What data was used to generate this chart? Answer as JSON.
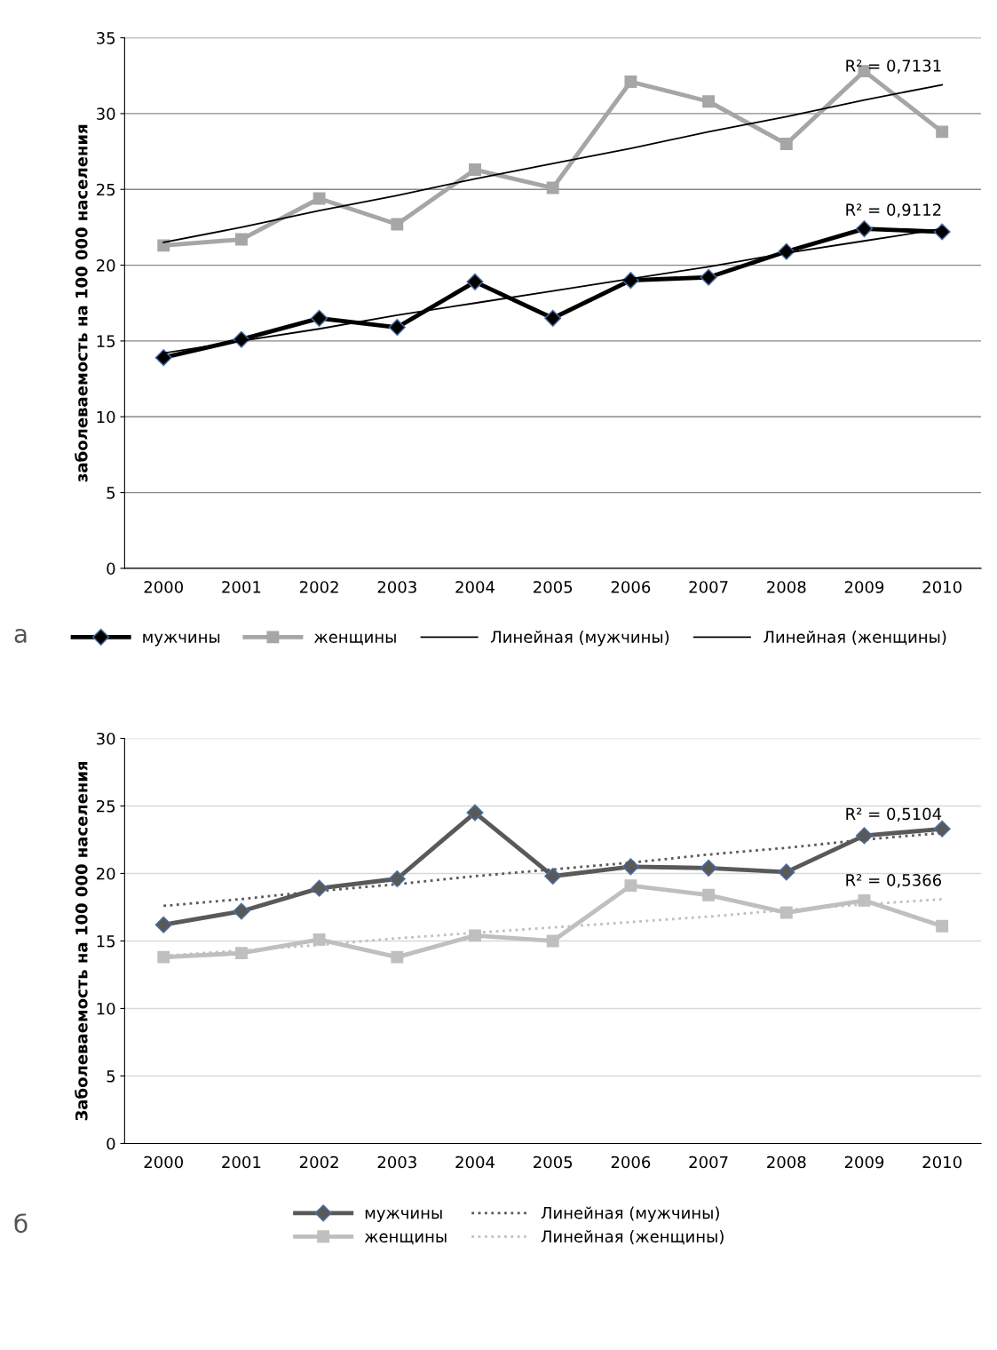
{
  "chart_data": [
    {
      "type": "line",
      "ylabel": "заболеваемость на 100 000 населения",
      "categories": [
        "2000",
        "2001",
        "2002",
        "2003",
        "2004",
        "2005",
        "2006",
        "2007",
        "2008",
        "2009",
        "2010"
      ],
      "ylim": [
        0,
        35
      ],
      "yticks": [
        0,
        5,
        10,
        15,
        20,
        25,
        30,
        35
      ],
      "grid": "y",
      "legend": "bottom",
      "series": [
        {
          "name": "мужчины",
          "color": "#000000",
          "marker": "diamond",
          "line_style": "solid",
          "values": [
            13.9,
            15.1,
            16.5,
            15.9,
            18.9,
            16.5,
            19.0,
            19.2,
            20.9,
            22.4,
            22.2
          ]
        },
        {
          "name": "женщины",
          "color": "#a6a6a6",
          "marker": "square",
          "line_style": "solid",
          "values": [
            21.3,
            21.7,
            24.4,
            22.7,
            26.3,
            25.1,
            32.1,
            30.8,
            28.0,
            32.8,
            28.8
          ]
        },
        {
          "name": "Линейная (мужчины)",
          "color": "#000000",
          "marker": "none",
          "line_style": "solid",
          "values": [
            14.2,
            15.0,
            15.8,
            16.7,
            17.5,
            18.3,
            19.1,
            19.9,
            20.8,
            21.6,
            22.4
          ]
        },
        {
          "name": "Линейная (женщины)",
          "color": "#000000",
          "marker": "none",
          "line_style": "solid",
          "values": [
            21.5,
            22.5,
            23.6,
            24.6,
            25.7,
            26.7,
            27.7,
            28.8,
            29.8,
            30.9,
            31.9
          ]
        }
      ],
      "annotations": [
        {
          "text": "R² = 0,7131",
          "x": "2010",
          "y": 31.9
        },
        {
          "text": "R² = 0,9112",
          "x": "2010",
          "y": 22.4
        },
        "а"
      ]
    },
    {
      "type": "line",
      "ylabel": "Заболеваемость на 100 000 населения",
      "categories": [
        "2000",
        "2001",
        "2002",
        "2003",
        "2004",
        "2005",
        "2006",
        "2007",
        "2008",
        "2009",
        "2010"
      ],
      "ylim": [
        0,
        30
      ],
      "yticks": [
        0,
        5,
        10,
        15,
        20,
        25,
        30
      ],
      "grid": "y",
      "legend": "bottom",
      "series": [
        {
          "name": "мужчины",
          "color": "#595959",
          "marker": "diamond",
          "line_style": "solid",
          "values": [
            16.2,
            17.2,
            18.9,
            19.6,
            24.5,
            19.8,
            20.5,
            20.4,
            20.1,
            22.8,
            23.3
          ]
        },
        {
          "name": "женщины",
          "color": "#bfbfbf",
          "marker": "square",
          "line_style": "solid",
          "values": [
            13.8,
            14.1,
            15.1,
            13.8,
            15.4,
            15.0,
            19.1,
            18.4,
            17.1,
            18.0,
            16.1
          ]
        },
        {
          "name": "Линейная (мужчины)",
          "color": "#595959",
          "marker": "none",
          "line_style": "dotted",
          "values": [
            17.6,
            18.1,
            18.7,
            19.2,
            19.8,
            20.3,
            20.8,
            21.4,
            21.9,
            22.5,
            23.0
          ]
        },
        {
          "name": "Линейная (женщины)",
          "color": "#bfbfbf",
          "marker": "none",
          "line_style": "dotted",
          "values": [
            13.9,
            14.3,
            14.7,
            15.2,
            15.6,
            16.0,
            16.4,
            16.8,
            17.3,
            17.7,
            18.1
          ]
        }
      ],
      "annotations": [
        {
          "text": "R² = 0,5104",
          "x": "2010",
          "y": 23.0
        },
        {
          "text": "R² = 0,5366",
          "x": "2010",
          "y": 18.1
        },
        "б"
      ]
    }
  ]
}
